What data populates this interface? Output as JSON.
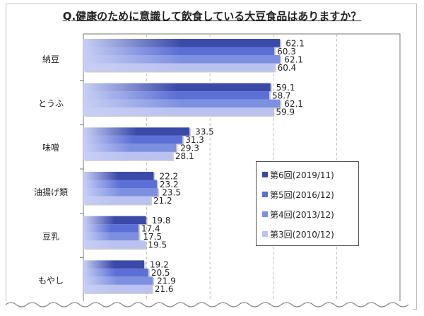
{
  "chart_data": {
    "type": "bar",
    "orientation": "horizontal",
    "title": "Q.健康のために意識して飲食している大豆食品はありますか？",
    "categories": [
      "納豆",
      "とうふ",
      "味噌",
      "油揚げ類",
      "豆乳",
      "もやし"
    ],
    "series": [
      {
        "name": "第6回(2019/11)",
        "color": "#3b4aa8",
        "values": [
          62.1,
          59.1,
          33.5,
          22.2,
          19.8,
          19.2
        ]
      },
      {
        "name": "第5回(2016/12)",
        "color": "#5b6fd6",
        "values": [
          60.3,
          58.7,
          31.3,
          23.2,
          17.4,
          20.5
        ]
      },
      {
        "name": "第4回(2013/12)",
        "color": "#7d8fe0",
        "values": [
          62.1,
          62.1,
          29.3,
          23.5,
          17.5,
          21.9
        ]
      },
      {
        "name": "第3回(2010/12)",
        "color": "#b9c2f0",
        "values": [
          60.4,
          59.9,
          28.1,
          21.2,
          19.5,
          21.6
        ]
      }
    ],
    "xlim": [
      0,
      100
    ],
    "grid": true,
    "legend": "right-center"
  }
}
